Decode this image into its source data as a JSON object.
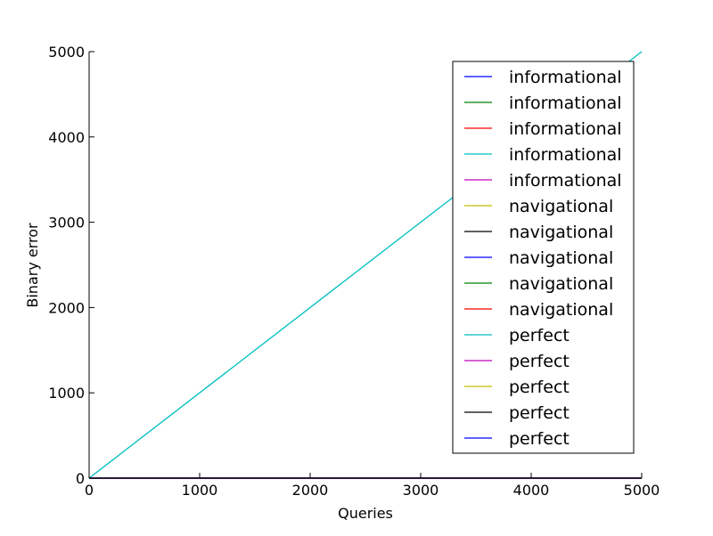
{
  "chart_data": {
    "type": "line",
    "title": "",
    "xlabel": "Queries",
    "ylabel": "Binary error",
    "xlim": [
      0,
      5000
    ],
    "ylim": [
      0,
      5000
    ],
    "xticks": [
      0,
      1000,
      2000,
      3000,
      4000,
      5000
    ],
    "yticks": [
      0,
      1000,
      2000,
      3000,
      4000,
      5000
    ],
    "xtick_labels": [
      "0",
      "1000",
      "2000",
      "3000",
      "4000",
      "5000"
    ],
    "ytick_labels": [
      "0",
      "1000",
      "2000",
      "3000",
      "4000",
      "5000"
    ],
    "grid": false,
    "legend_position": "top-right",
    "series": [
      {
        "name": "informational",
        "color": "#0000ff",
        "x": [
          0,
          5000
        ],
        "y": [
          0,
          0
        ]
      },
      {
        "name": "informational",
        "color": "#008000",
        "x": [
          0,
          5000
        ],
        "y": [
          0,
          0
        ]
      },
      {
        "name": "informational",
        "color": "#ff0000",
        "x": [
          0,
          5000
        ],
        "y": [
          0,
          0
        ]
      },
      {
        "name": "informational",
        "color": "#00bfbf",
        "x": [
          0,
          5000
        ],
        "y": [
          0,
          0
        ]
      },
      {
        "name": "informational",
        "color": "#bf00bf",
        "x": [
          0,
          5000
        ],
        "y": [
          0,
          0
        ]
      },
      {
        "name": "navigational",
        "color": "#bfbf00",
        "x": [
          0,
          5000
        ],
        "y": [
          0,
          0
        ]
      },
      {
        "name": "navigational",
        "color": "#000000",
        "x": [
          0,
          5000
        ],
        "y": [
          0,
          0
        ]
      },
      {
        "name": "navigational",
        "color": "#0000ff",
        "x": [
          0,
          5000
        ],
        "y": [
          0,
          0
        ]
      },
      {
        "name": "navigational",
        "color": "#008000",
        "x": [
          0,
          5000
        ],
        "y": [
          0,
          0
        ]
      },
      {
        "name": "navigational",
        "color": "#ff0000",
        "x": [
          0,
          5000
        ],
        "y": [
          0,
          0
        ]
      },
      {
        "name": "perfect",
        "color": "#00bfbf",
        "x": [
          0,
          5000
        ],
        "y": [
          0,
          5000
        ]
      },
      {
        "name": "perfect",
        "color": "#bf00bf",
        "x": [
          0,
          5000
        ],
        "y": [
          0,
          0
        ]
      },
      {
        "name": "perfect",
        "color": "#bfbf00",
        "x": [
          0,
          5000
        ],
        "y": [
          0,
          0
        ]
      },
      {
        "name": "perfect",
        "color": "#000000",
        "x": [
          0,
          5000
        ],
        "y": [
          0,
          0
        ]
      },
      {
        "name": "perfect",
        "color": "#0000ff",
        "x": [
          0,
          5000
        ],
        "y": [
          0,
          0
        ]
      }
    ]
  }
}
